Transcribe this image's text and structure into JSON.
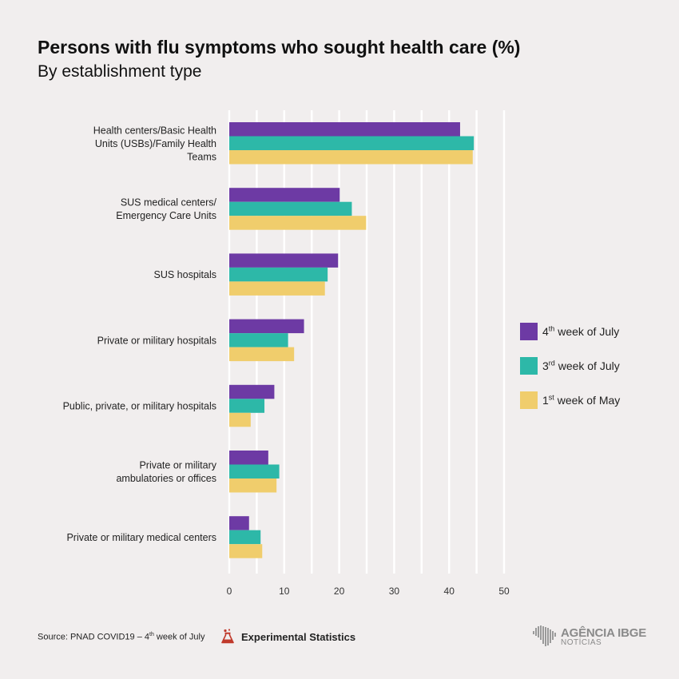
{
  "title": "Persons with flu symptoms who sought health care (%)",
  "subtitle": "By establishment type",
  "colors": {
    "4th week of July": "#6d3aa4",
    "3rd week of July": "#2db8a8",
    "1st week of May": "#f0cd6c",
    "gridline": "#ffffff",
    "background": "#f1eeee"
  },
  "chart_data": {
    "type": "bar",
    "orientation": "horizontal",
    "categories": [
      [
        "Health centers/Basic Health",
        "Units (USBs)/Family Health",
        "Teams"
      ],
      [
        "SUS medical centers/",
        "Emergency Care Units"
      ],
      [
        "SUS hospitals"
      ],
      [
        "Private or military hospitals"
      ],
      [
        "Public, private, or military hospitals"
      ],
      [
        "Private or military",
        "ambulatories or offices"
      ],
      [
        "Private or military medical centers"
      ]
    ],
    "series": [
      {
        "name": "4th week of July",
        "values": [
          42.0,
          20.1,
          19.8,
          13.6,
          8.2,
          7.1,
          3.6
        ]
      },
      {
        "name": "3rd week of July",
        "values": [
          44.5,
          22.3,
          17.9,
          10.7,
          6.4,
          9.1,
          5.7
        ]
      },
      {
        "name": "1st week of May",
        "values": [
          44.3,
          24.9,
          17.4,
          11.8,
          3.9,
          8.6,
          6.0
        ]
      }
    ],
    "xlim": [
      0,
      50
    ],
    "xticks": [
      0,
      10,
      20,
      30,
      40,
      50
    ],
    "xlabel": "",
    "ylabel": "",
    "grid": true,
    "legend_position": "right"
  },
  "legend": [
    {
      "ordinal": "4",
      "sup": "th",
      "rest": " week of July",
      "color": "#6d3aa4"
    },
    {
      "ordinal": "3",
      "sup": "rd",
      "rest": " week of July",
      "color": "#2db8a8"
    },
    {
      "ordinal": "1",
      "sup": "st",
      "rest": " week of May",
      "color": "#f0cd6c"
    }
  ],
  "footer": {
    "source_prefix": "Source: PNAD COVID19 – 4",
    "source_sup": "th",
    "source_suffix": " week of July",
    "experimental_label": "Experimental Statistics",
    "logo_main": "AGÊNCIA IBGE",
    "logo_sub": "NOTÍCIAS"
  }
}
